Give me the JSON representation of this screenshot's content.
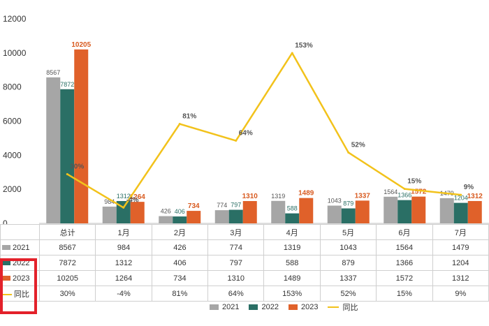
{
  "chart_data": {
    "type": "bar",
    "title": "",
    "xlabel": "",
    "ylabel": "",
    "ylim": [
      0,
      12000
    ],
    "yticks": [
      0,
      2000,
      4000,
      6000,
      8000,
      10000,
      12000
    ],
    "categories": [
      "总计",
      "1月",
      "2月",
      "3月",
      "4月",
      "5月",
      "6月",
      "7月"
    ],
    "series": [
      {
        "name": "2021",
        "color": "#a6a6a6",
        "values": [
          8567,
          984,
          426,
          774,
          1319,
          1043,
          1564,
          1479
        ]
      },
      {
        "name": "2022",
        "color": "#2a6f65",
        "values": [
          7872,
          1312,
          406,
          797,
          588,
          879,
          1366,
          1204
        ]
      },
      {
        "name": "2023",
        "color": "#e0612a",
        "values": [
          10205,
          1264,
          734,
          1310,
          1489,
          1337,
          1572,
          1312
        ]
      }
    ],
    "line": {
      "name": "同比",
      "color": "#f2c21b",
      "values": [
        30,
        -4,
        81,
        64,
        153,
        52,
        15,
        9
      ],
      "labels": [
        "30%",
        "-4%",
        "81%",
        "64%",
        "153%",
        "52%",
        "15%",
        "9%"
      ]
    },
    "legend_position": "bottom",
    "grid": false
  },
  "table": {
    "rows": [
      {
        "name": "2021",
        "values": [
          "8567",
          "984",
          "426",
          "774",
          "1319",
          "1043",
          "1564",
          "1479"
        ]
      },
      {
        "name": "2022",
        "values": [
          "7872",
          "1312",
          "406",
          "797",
          "588",
          "879",
          "1366",
          "1204"
        ]
      },
      {
        "name": "2023",
        "values": [
          "10205",
          "1264",
          "734",
          "1310",
          "1489",
          "1337",
          "1572",
          "1312"
        ]
      },
      {
        "name": "同比",
        "values": [
          "30%",
          "-4%",
          "81%",
          "64%",
          "153%",
          "52%",
          "15%",
          "9%"
        ]
      }
    ]
  },
  "highlight_color": "#e3212a"
}
